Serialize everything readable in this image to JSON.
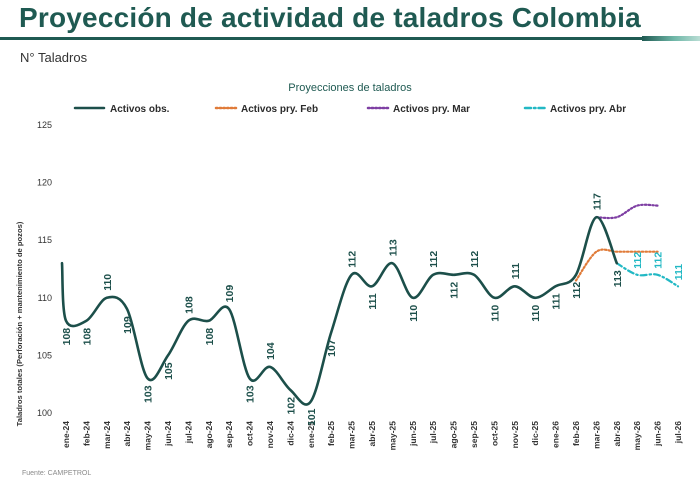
{
  "page": {
    "title": "Proyección de actividad de taladros Colombia",
    "subtitle": "N° Taladros",
    "source": "Fuente: CAMPETROL"
  },
  "colors": {
    "brand": "#1f5a52",
    "observed": "#1c4f4a",
    "feb": "#e07b39",
    "mar": "#7e3fa3",
    "abr": "#22b8c4"
  },
  "chart_data": {
    "type": "line",
    "title": "Proyecciones de taladros",
    "ylabel": "Taladros totales (Perforación + mantenimiento de pozos)",
    "xlabel": "",
    "ylim": [
      100,
      125
    ],
    "yticks": [
      100,
      105,
      110,
      115,
      120,
      125
    ],
    "grid": false,
    "legend_position": "top",
    "categories": [
      "ene-24",
      "feb-24",
      "mar-24",
      "abr-24",
      "may-24",
      "jun-24",
      "jul-24",
      "ago-24",
      "sep-24",
      "oct-24",
      "nov-24",
      "dic-24",
      "ene-25",
      "feb-25",
      "mar-25",
      "abr-25",
      "may-25",
      "jun-25",
      "jul-25",
      "ago-25",
      "sep-25",
      "oct-25",
      "nov-25",
      "dic-25",
      "ene-26",
      "feb-26",
      "mar-26",
      "abr-26",
      "may-26",
      "jun-26",
      "jul-26"
    ],
    "series": [
      {
        "name": "Activos obs.",
        "style": "solid",
        "color": "#1c4f4a",
        "start_value": 113,
        "values": [
          108,
          108,
          110,
          109,
          103,
          105,
          108,
          108,
          109,
          103,
          104,
          102,
          101,
          107,
          112,
          111,
          113,
          110,
          112,
          112,
          112,
          110,
          111,
          110,
          111,
          112,
          117,
          113,
          null,
          null,
          null
        ],
        "labels": [
          "108",
          "108",
          "110",
          "109",
          "103",
          "105",
          "108",
          "108",
          "109",
          "103",
          "104",
          "102",
          "101",
          "107",
          "112",
          "111",
          "113",
          "110",
          "112",
          "112",
          "112",
          "110",
          "111",
          "110",
          "111",
          "112",
          "117",
          "113",
          "",
          "",
          ""
        ]
      },
      {
        "name": "Activos pry. Feb",
        "style": "dotted",
        "color": "#e07b39",
        "values": [
          null,
          null,
          null,
          null,
          null,
          null,
          null,
          null,
          null,
          null,
          null,
          null,
          null,
          null,
          null,
          null,
          null,
          null,
          null,
          null,
          null,
          null,
          null,
          null,
          null,
          111.5,
          114,
          114,
          114,
          114,
          null
        ]
      },
      {
        "name": "Activos pry. Mar",
        "style": "dotted",
        "color": "#7e3fa3",
        "values": [
          null,
          null,
          null,
          null,
          null,
          null,
          null,
          null,
          null,
          null,
          null,
          null,
          null,
          null,
          null,
          null,
          null,
          null,
          null,
          null,
          null,
          null,
          null,
          null,
          null,
          null,
          117,
          117,
          118,
          118,
          null
        ]
      },
      {
        "name": "Activos pry. Abr",
        "style": "dashdot",
        "color": "#22b8c4",
        "values": [
          null,
          null,
          null,
          null,
          null,
          null,
          null,
          null,
          null,
          null,
          null,
          null,
          null,
          null,
          null,
          null,
          null,
          null,
          null,
          null,
          null,
          null,
          null,
          null,
          null,
          null,
          null,
          113,
          112,
          112,
          111
        ],
        "labels": [
          "",
          "",
          "",
          "",
          "",
          "",
          "",
          "",
          "",
          "",
          "",
          "",
          "",
          "",
          "",
          "",
          "",
          "",
          "",
          "",
          "",
          "",
          "",
          "",
          "",
          "",
          "",
          "",
          "112",
          "112",
          "111"
        ]
      }
    ]
  }
}
